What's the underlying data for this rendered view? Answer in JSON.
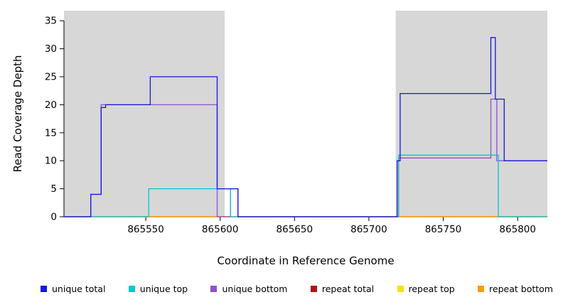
{
  "chart_data": {
    "type": "line",
    "step": true,
    "title": "",
    "xlabel": "Coordinate in Reference Genome",
    "ylabel": "Read Coverage Depth",
    "x_domain": [
      865495,
      865820
    ],
    "y_domain": [
      0,
      36.8
    ],
    "x_ticks": [
      865550,
      865600,
      865650,
      865700,
      865750,
      865800
    ],
    "y_ticks": [
      0,
      5,
      10,
      15,
      20,
      25,
      30,
      35
    ],
    "grid": false,
    "legend_position": "bottom",
    "panel_background": "#ffffff",
    "shade_color": "#d7d7d7",
    "shaded_regions": [
      [
        865495,
        865603
      ],
      [
        865718,
        865820
      ]
    ],
    "series": [
      {
        "name": "repeat top",
        "color": "#f2e400",
        "points": [
          [
            865495,
            0
          ],
          [
            865820,
            0
          ]
        ]
      },
      {
        "name": "repeat total",
        "color": "#b01414",
        "points": [
          [
            865495,
            0
          ],
          [
            865820,
            0
          ]
        ]
      },
      {
        "name": "repeat bottom",
        "color": "#ff9d00",
        "points": [
          [
            865495,
            0
          ],
          [
            865820,
            0
          ]
        ]
      },
      {
        "name": "unique bottom",
        "color": "#9050d0",
        "points": [
          [
            865495,
            0
          ],
          [
            865513,
            0
          ],
          [
            865513,
            4
          ],
          [
            865520,
            4
          ],
          [
            865520,
            20
          ],
          [
            865598,
            20
          ],
          [
            865598,
            0
          ],
          [
            865607,
            0
          ],
          [
            865607,
            5
          ],
          [
            865612,
            5
          ],
          [
            865612,
            0
          ],
          [
            865720,
            0
          ],
          [
            865720,
            10.5
          ],
          [
            865782,
            10.5
          ],
          [
            865782,
            21
          ],
          [
            865786,
            21
          ],
          [
            865786,
            10
          ],
          [
            865820,
            10
          ]
        ]
      },
      {
        "name": "unique top",
        "color": "#00c9d2",
        "points": [
          [
            865495,
            0
          ],
          [
            865552,
            0
          ],
          [
            865552,
            5
          ],
          [
            865607,
            5
          ],
          [
            865607,
            0
          ],
          [
            865720,
            0
          ],
          [
            865720,
            11
          ],
          [
            865787,
            11
          ],
          [
            865787,
            0
          ],
          [
            865820,
            0
          ]
        ]
      },
      {
        "name": "unique total",
        "color": "#1717d8",
        "points": [
          [
            865495,
            0
          ],
          [
            865513,
            0
          ],
          [
            865513,
            4
          ],
          [
            865520,
            4
          ],
          [
            865520,
            19.5
          ],
          [
            865523,
            19.5
          ],
          [
            865523,
            20
          ],
          [
            865553,
            20
          ],
          [
            865553,
            25
          ],
          [
            865598,
            25
          ],
          [
            865598,
            5
          ],
          [
            865612,
            5
          ],
          [
            865612,
            0
          ],
          [
            865719,
            0
          ],
          [
            865719,
            10
          ],
          [
            865721,
            10
          ],
          [
            865721,
            22
          ],
          [
            865782,
            22
          ],
          [
            865782,
            32
          ],
          [
            865785,
            32
          ],
          [
            865785,
            21
          ],
          [
            865791,
            21
          ],
          [
            865791,
            10
          ],
          [
            865820,
            10
          ]
        ]
      }
    ],
    "legend": [
      {
        "label": "unique total",
        "color": "#1717d8"
      },
      {
        "label": "unique top",
        "color": "#00c9d2"
      },
      {
        "label": "unique bottom",
        "color": "#9050d0"
      },
      {
        "label": "repeat total",
        "color": "#b01414"
      },
      {
        "label": "repeat top",
        "color": "#f2e400"
      },
      {
        "label": "repeat bottom",
        "color": "#ff9d00"
      }
    ]
  }
}
